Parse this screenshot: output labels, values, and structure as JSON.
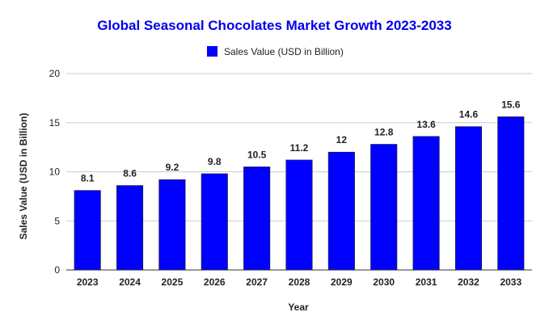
{
  "chart_data": {
    "type": "bar",
    "title": "Global Seasonal Chocolates Market Growth 2023-2033",
    "xlabel": "Year",
    "ylabel": "Sales Value (USD in Billion)",
    "categories": [
      "2023",
      "2024",
      "2025",
      "2026",
      "2027",
      "2028",
      "2029",
      "2030",
      "2031",
      "2032",
      "2033"
    ],
    "series": [
      {
        "name": "Sales Value (USD in Billion)",
        "values": [
          8.1,
          8.6,
          9.2,
          9.8,
          10.5,
          11.2,
          12,
          12.8,
          13.6,
          14.6,
          15.6
        ]
      }
    ],
    "ylim": [
      0,
      20
    ],
    "yticks": [
      0,
      5,
      10,
      15,
      20
    ],
    "grid": true,
    "legend_position": "top-center",
    "colors": {
      "bar": "#0000ff",
      "title": "#0000ee",
      "grid": "#cccccc",
      "axis": "#333333"
    }
  }
}
